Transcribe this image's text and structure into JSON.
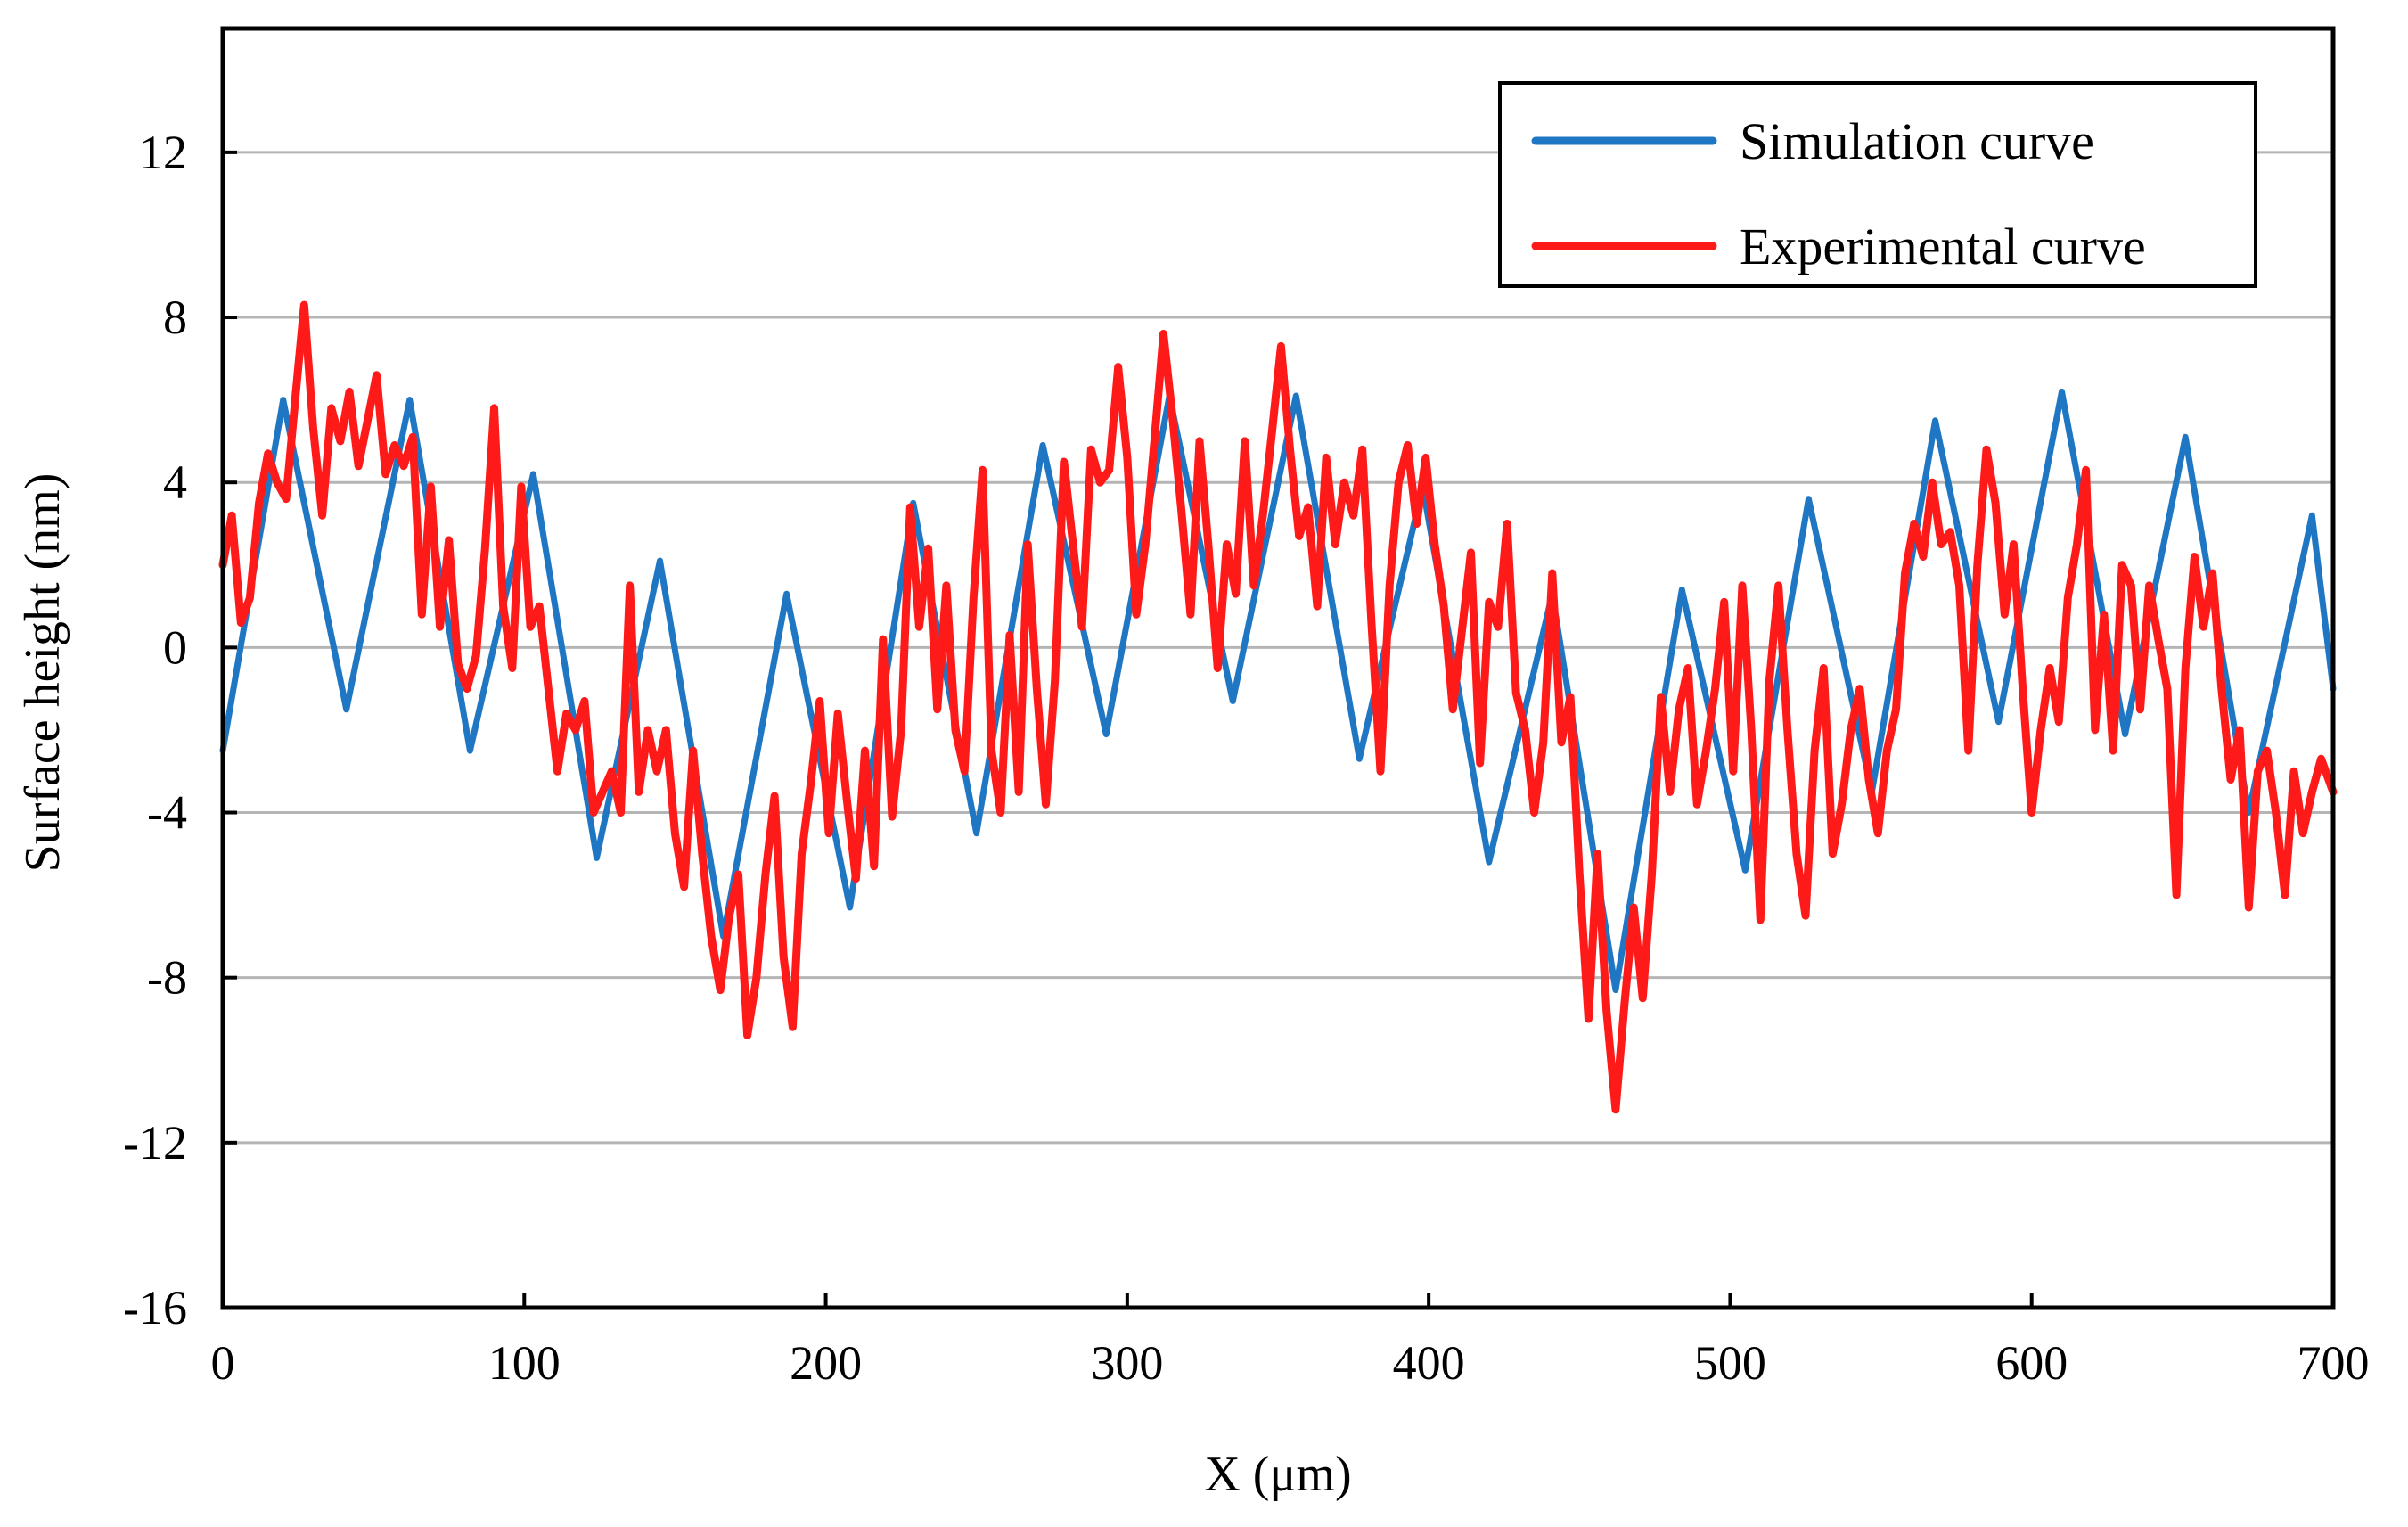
{
  "chart_data": {
    "type": "line",
    "title": "",
    "xlabel": "X (μm)",
    "ylabel": "Surface height (nm)",
    "xlim": [
      0,
      700
    ],
    "ylim": [
      -16,
      15
    ],
    "x_ticks": [
      0,
      100,
      200,
      300,
      400,
      500,
      600,
      700
    ],
    "x_tick_labels": [
      "0",
      "100",
      "200",
      "300",
      "400",
      "500",
      "600",
      "700"
    ],
    "y_ticks": [
      12,
      8,
      4,
      0,
      -4,
      -8,
      -12,
      -16
    ],
    "y_tick_labels": [
      "12",
      "8",
      "4",
      "0",
      "-4",
      "-8",
      "-12",
      "-16"
    ],
    "grid": "horizontal",
    "legend_position": "top-right",
    "series": [
      {
        "name": "Simulation curve",
        "color": "#1f77c4",
        "x": [
          0,
          20,
          41,
          62,
          82,
          103,
          124,
          145,
          166,
          187,
          208,
          229,
          250,
          272,
          293,
          314,
          335,
          356,
          377,
          398,
          420,
          441,
          462,
          484,
          505,
          526,
          547,
          568,
          589,
          610,
          631,
          651,
          672,
          693,
          700
        ],
        "y": [
          -2.5,
          6.0,
          -1.5,
          6.0,
          -2.5,
          4.2,
          -5.1,
          2.1,
          -7.0,
          1.3,
          -6.3,
          3.5,
          -4.5,
          4.9,
          -2.1,
          6.1,
          -1.3,
          6.1,
          -2.7,
          3.9,
          -5.2,
          1.3,
          -8.3,
          1.4,
          -5.4,
          3.6,
          -3.5,
          5.5,
          -1.8,
          6.2,
          -2.1,
          5.1,
          -4.0,
          3.2,
          -1.0
        ]
      },
      {
        "name": "Experimental curve",
        "color": "#ff1a1a",
        "x": [
          0,
          3,
          6,
          9,
          12,
          15,
          18,
          21,
          24,
          27,
          30,
          33,
          36,
          39,
          42,
          45,
          48,
          51,
          54,
          57,
          60,
          63,
          66,
          69,
          72,
          75,
          78,
          81,
          84,
          87,
          90,
          93,
          96,
          99,
          102,
          105,
          108,
          111,
          114,
          117,
          120,
          123,
          126,
          129,
          132,
          135,
          138,
          141,
          144,
          147,
          150,
          153,
          156,
          159,
          162,
          165,
          168,
          171,
          174,
          177,
          180,
          183,
          186,
          189,
          192,
          195,
          198,
          201,
          204,
          207,
          210,
          213,
          216,
          219,
          222,
          225,
          228,
          231,
          234,
          237,
          240,
          243,
          246,
          249,
          252,
          255,
          258,
          261,
          264,
          267,
          270,
          273,
          276,
          279,
          282,
          285,
          288,
          291,
          294,
          297,
          300,
          303,
          306,
          309,
          312,
          315,
          318,
          321,
          324,
          327,
          330,
          333,
          336,
          339,
          342,
          345,
          348,
          351,
          354,
          357,
          360,
          363,
          366,
          369,
          372,
          375,
          378,
          381,
          384,
          387,
          390,
          393,
          396,
          399,
          402,
          405,
          408,
          411,
          414,
          417,
          420,
          423,
          426,
          429,
          432,
          435,
          438,
          441,
          444,
          447,
          450,
          453,
          456,
          459,
          462,
          465,
          468,
          471,
          474,
          477,
          480,
          483,
          486,
          489,
          492,
          495,
          498,
          501,
          504,
          507,
          510,
          513,
          516,
          519,
          522,
          525,
          528,
          531,
          534,
          537,
          540,
          543,
          546,
          549,
          552,
          555,
          558,
          561,
          564,
          567,
          570,
          573,
          576,
          579,
          582,
          585,
          588,
          591,
          594,
          597,
          600,
          603,
          606,
          609,
          612,
          615,
          618,
          621,
          624,
          627,
          630,
          633,
          636,
          639,
          642,
          645,
          648,
          651,
          654,
          657,
          660,
          663,
          666,
          669,
          672,
          675,
          678,
          681,
          684,
          687,
          690,
          693,
          696,
          700
        ],
        "y": [
          2.0,
          3.2,
          0.6,
          1.2,
          3.5,
          4.7,
          4.0,
          3.6,
          6.0,
          8.3,
          5.3,
          3.2,
          5.8,
          5.0,
          6.2,
          4.4,
          5.5,
          6.6,
          4.2,
          4.9,
          4.4,
          5.1,
          0.8,
          3.9,
          0.5,
          2.6,
          -0.4,
          -1.0,
          -0.2,
          2.4,
          5.8,
          1.0,
          -0.5,
          3.9,
          0.5,
          1.0,
          -1.0,
          -3.0,
          -1.6,
          -2.0,
          -1.3,
          -4.0,
          -3.5,
          -3.0,
          -4.0,
          1.5,
          -3.5,
          -2.0,
          -3.0,
          -2.0,
          -4.5,
          -5.8,
          -2.5,
          -5.0,
          -7.0,
          -8.3,
          -6.5,
          -5.5,
          -9.4,
          -8.0,
          -5.5,
          -3.6,
          -7.5,
          -9.2,
          -5.0,
          -3.3,
          -1.3,
          -4.5,
          -1.6,
          -3.7,
          -5.6,
          -2.5,
          -5.3,
          0.2,
          -4.1,
          -2.0,
          3.4,
          0.5,
          2.4,
          -1.5,
          1.5,
          -2.0,
          -3.0,
          1.2,
          4.3,
          -2.5,
          -4.0,
          0.3,
          -3.5,
          2.5,
          -1.0,
          -3.8,
          -0.8,
          4.5,
          2.5,
          0.5,
          4.8,
          4.0,
          4.3,
          6.8,
          4.6,
          0.8,
          2.5,
          5.0,
          7.6,
          5.6,
          3.3,
          0.8,
          5.0,
          2.4,
          -0.5,
          2.5,
          1.3,
          5.0,
          1.5,
          3.2,
          5.2,
          7.3,
          4.8,
          2.7,
          3.4,
          1.0,
          4.6,
          2.5,
          4.0,
          3.2,
          4.8,
          0.6,
          -3.0,
          1.5,
          4.0,
          4.9,
          3.0,
          4.6,
          2.5,
          1.0,
          -1.5,
          0.4,
          2.3,
          -2.8,
          1.1,
          0.5,
          3.0,
          -1.1,
          -2.0,
          -4.0,
          -2.3,
          1.8,
          -2.3,
          -1.2,
          -5.5,
          -9.0,
          -5.0,
          -8.8,
          -11.2,
          -8.6,
          -6.3,
          -8.5,
          -5.5,
          -1.2,
          -3.5,
          -1.5,
          -0.5,
          -3.8,
          -2.5,
          -1.0,
          1.1,
          -3.0,
          1.5,
          -2.0,
          -6.6,
          -0.8,
          1.5,
          -2.0,
          -5.0,
          -6.5,
          -2.5,
          -0.5,
          -5.0,
          -3.8,
          -2.0,
          -1.0,
          -3.2,
          -4.5,
          -2.5,
          -1.5,
          1.8,
          3.0,
          2.2,
          4.0,
          2.5,
          2.8,
          1.5,
          -2.5,
          2.0,
          4.8,
          3.5,
          0.8,
          2.5,
          -1.0,
          -4.0,
          -2.0,
          -0.5,
          -1.8,
          1.2,
          2.5,
          4.3,
          -2.0,
          0.8,
          -2.5,
          2.0,
          1.5,
          -1.5,
          1.5,
          0.2,
          -1.0,
          -6.0,
          -0.5,
          2.2,
          0.5,
          1.8,
          -1.0,
          -3.2,
          -2.0,
          -6.3,
          -3.0,
          -2.5,
          -4.0,
          -6.0,
          -3.0,
          -4.5,
          -3.5,
          -2.7,
          -3.5
        ]
      }
    ]
  }
}
